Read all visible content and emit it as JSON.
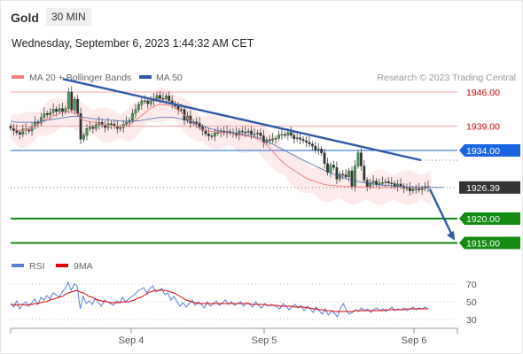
{
  "header": {
    "symbol": "Gold",
    "timeframe": "30 MIN"
  },
  "subtitle": "Wednesday, September 6, 2023 1:44:32 AM CET",
  "copyright": "Research © 2023 Trading Central",
  "colors": {
    "ma20": "#f08080",
    "ma50": "#2f5aa8",
    "support": "#138a13",
    "resist": "#f4a6a6",
    "current": "#333333",
    "pivot": "#1a66e0",
    "rsi": "#5b7fd8",
    "rsi_ma": "#e00000"
  },
  "chart_data": [
    {
      "type": "candlestick",
      "title": "Gold",
      "ylim": [
        1912,
        1952
      ],
      "legend": [
        {
          "name": "MA 20 + Bollinger Bands",
          "color": "#f08080"
        },
        {
          "name": "MA 50",
          "color": "#2f5aa8"
        }
      ],
      "levels": [
        {
          "label": "1946.00",
          "value": 1946.0,
          "kind": "resistance"
        },
        {
          "label": "1939.00",
          "value": 1939.0,
          "kind": "resistance"
        },
        {
          "label": "1934.00",
          "value": 1934.0,
          "kind": "pivot"
        },
        {
          "label": "1926.39",
          "value": 1926.39,
          "kind": "current"
        },
        {
          "label": "1920.00",
          "value": 1920.0,
          "kind": "support"
        },
        {
          "label": "1915.00",
          "value": 1915.0,
          "kind": "support"
        }
      ],
      "x_ticks": [
        "Sep 4",
        "Sep 5",
        "Sep 6"
      ],
      "close": [
        1938.6,
        1938.1,
        1937.7,
        1937.3,
        1938.4,
        1938.2,
        1938.0,
        1938.9,
        1939.8,
        1939.6,
        1940.8,
        1941.6,
        1941.3,
        1941.8,
        1942.5,
        1942.0,
        1942.6,
        1942.0,
        1942.6,
        1946.0,
        1942.3,
        1944.5,
        1941.6,
        1936.3,
        1937.1,
        1938.5,
        1938.8,
        1938.5,
        1939.3,
        1939.8,
        1939.2,
        1938.7,
        1939.5,
        1939.4,
        1939.0,
        1938.5,
        1938.7,
        1939.4,
        1939.8,
        1940.2,
        1941.6,
        1942.4,
        1943.4,
        1944.2,
        1944.2,
        1943.6,
        1944.2,
        1944.6,
        1945.3,
        1944.7,
        1944.6,
        1945.2,
        1944.2,
        1943.6,
        1943.1,
        1942.3,
        1942.4,
        1940.2,
        1941.1,
        1939.6,
        1939.9,
        1939.6,
        1938.8,
        1938.1,
        1937.4,
        1937.0,
        1936.9,
        1937.6,
        1937.7,
        1938.0,
        1937.6,
        1937.9,
        1937.7,
        1937.6,
        1937.1,
        1938.0,
        1937.8,
        1937.7,
        1938.0,
        1937.3,
        1937.4,
        1937.6,
        1937.0,
        1935.6,
        1936.2,
        1936.1,
        1936.4,
        1936.5,
        1937.2,
        1937.3,
        1937.1,
        1937.7,
        1937.1,
        1936.4,
        1936.6,
        1936.3,
        1936.0,
        1935.7,
        1935.3,
        1934.9,
        1934.1,
        1934.3,
        1933.5,
        1931.3,
        1929.5,
        1931.0,
        1930.5,
        1928.1,
        1929.1,
        1929.0,
        1928.6,
        1929.8,
        1926.6,
        1930.8,
        1933.5,
        1930.8,
        1927.9,
        1926.6,
        1927.3,
        1927.7,
        1927.0,
        1927.3,
        1927.4,
        1927.6,
        1927.3,
        1927.2,
        1926.6,
        1927.1,
        1926.7,
        1926.2,
        1926.3,
        1925.7,
        1926.1,
        1926.1,
        1925.9,
        1926.2,
        1926.6,
        1926.4
      ],
      "ma20": [
        1938.8,
        1938.6,
        1938.2,
        1938.0,
        1938.1,
        1938.3,
        1938.5,
        1938.8,
        1939.0,
        1939.4,
        1939.8,
        1940.2,
        1940.5,
        1940.8,
        1941.1,
        1941.3,
        1941.6,
        1941.8,
        1941.8,
        1942.1,
        1941.9,
        1941.8,
        1941.5,
        1940.6,
        1940.2,
        1940.0,
        1939.9,
        1939.8,
        1939.7,
        1939.5,
        1939.3,
        1939.2,
        1939.1,
        1939.0,
        1939.0,
        1938.9,
        1938.9,
        1939.0,
        1939.1,
        1939.3,
        1939.7,
        1940.2,
        1940.7,
        1941.2,
        1941.7,
        1942.2,
        1942.7,
        1943.0,
        1943.3,
        1943.4,
        1943.4,
        1943.4,
        1943.3,
        1943.1,
        1942.8,
        1942.3,
        1941.8,
        1941.2,
        1940.7,
        1940.2,
        1939.6,
        1939.0,
        1938.6,
        1938.3,
        1938.1,
        1938.0,
        1937.9,
        1937.9,
        1937.8,
        1937.8,
        1937.7,
        1937.7,
        1937.6,
        1937.5,
        1937.3,
        1937.2,
        1937.1,
        1937.0,
        1936.9,
        1936.8,
        1936.6,
        1936.3,
        1936.0,
        1935.6,
        1935.1,
        1934.5,
        1933.8,
        1933.1,
        1932.4,
        1931.8,
        1931.2,
        1930.7,
        1930.3,
        1929.9,
        1929.5,
        1929.1,
        1928.7,
        1928.3,
        1928.0,
        1927.8,
        1927.6,
        1927.4,
        1927.2,
        1927.0,
        1926.9,
        1926.8,
        1926.8,
        1926.7,
        1926.7,
        1926.6,
        1926.6,
        1926.6,
        1926.5,
        1926.5,
        1926.5,
        1926.5,
        1926.5,
        1926.4,
        1926.4,
        1926.4,
        1926.4,
        1926.4,
        1926.4,
        1926.4,
        1926.4,
        1926.4,
        1926.4,
        1926.4,
        1926.4,
        1926.4,
        1926.4,
        1926.4,
        1926.4,
        1926.4,
        1926.4,
        1926.4,
        1926.4,
        1926.4,
        1926.4
      ],
      "ma50": [
        1940.0,
        1939.9,
        1939.8,
        1939.8,
        1939.8,
        1939.8,
        1939.8,
        1939.8,
        1939.8,
        1939.9,
        1940.0,
        1940.1,
        1940.2,
        1940.3,
        1940.4,
        1940.5,
        1940.6,
        1940.7,
        1940.8,
        1940.9,
        1941.0,
        1941.0,
        1941.0,
        1940.9,
        1940.8,
        1940.7,
        1940.6,
        1940.5,
        1940.5,
        1940.4,
        1940.4,
        1940.3,
        1940.3,
        1940.2,
        1940.2,
        1940.1,
        1940.1,
        1940.0,
        1940.0,
        1940.0,
        1940.0,
        1940.1,
        1940.1,
        1940.2,
        1940.3,
        1940.4,
        1940.5,
        1940.6,
        1940.7,
        1940.8,
        1940.8,
        1940.8,
        1940.8,
        1940.8,
        1940.7,
        1940.6,
        1940.5,
        1940.3,
        1940.1,
        1939.9,
        1939.7,
        1939.4,
        1939.2,
        1939.0,
        1938.8,
        1938.6,
        1938.4,
        1938.2,
        1938.1,
        1938.0,
        1937.9,
        1937.8,
        1937.7,
        1937.6,
        1937.5,
        1937.4,
        1937.3,
        1937.2,
        1937.1,
        1937.0,
        1936.8,
        1936.6,
        1936.4,
        1936.2,
        1935.9,
        1935.6,
        1935.3,
        1935.0,
        1934.6,
        1934.3,
        1934.0,
        1933.6,
        1933.3,
        1933.0,
        1932.6,
        1932.3,
        1932.0,
        1931.7,
        1931.4,
        1931.1,
        1930.8,
        1930.5,
        1930.2,
        1929.9,
        1929.6,
        1929.4,
        1929.1,
        1928.9,
        1928.7,
        1928.5,
        1928.3,
        1928.1,
        1927.9,
        1927.8,
        1927.6,
        1927.5,
        1927.4,
        1927.3,
        1927.2,
        1927.1,
        1927.0,
        1926.9,
        1926.9,
        1926.8,
        1926.8,
        1926.7,
        1926.7,
        1926.6,
        1926.6,
        1926.6,
        1926.5,
        1926.5,
        1926.5,
        1926.5,
        1926.4,
        1926.4,
        1926.4,
        1926.4,
        1926.4,
        1926.4,
        1926.4,
        1926.4,
        1926.4
      ]
    },
    {
      "type": "line",
      "legend": [
        {
          "name": "RSI",
          "color": "#5b7fd8"
        },
        {
          "name": "9MA",
          "color": "#e00000"
        }
      ],
      "ylim": [
        20,
        80
      ],
      "y_ticks": [
        70,
        50,
        30
      ],
      "series": [
        {
          "name": "RSI",
          "values": [
            48,
            44,
            51,
            42,
            47,
            50,
            45,
            49,
            53,
            47,
            55,
            52,
            57,
            53,
            60,
            58,
            55,
            61,
            65,
            72,
            63,
            70,
            68,
            42,
            56,
            48,
            51,
            47,
            54,
            49,
            45,
            52,
            50,
            48,
            46,
            51,
            49,
            55,
            50,
            53,
            56,
            58,
            62,
            64,
            66,
            60,
            65,
            68,
            61,
            63,
            65,
            58,
            60,
            52,
            56,
            50,
            45,
            49,
            44,
            48,
            52,
            46,
            50,
            47,
            43,
            50,
            45,
            48,
            51,
            46,
            49,
            52,
            47,
            50,
            46,
            48,
            50,
            45,
            49,
            47,
            44,
            50,
            46,
            43,
            48,
            45,
            47,
            46,
            44,
            42,
            48,
            45,
            41,
            44,
            47,
            43,
            46,
            40,
            45,
            42,
            38,
            44,
            40,
            36,
            42,
            35,
            39,
            37,
            33,
            43,
            48,
            40,
            36,
            38,
            41,
            39,
            43,
            40,
            42,
            38,
            41,
            43,
            40,
            42,
            39,
            41,
            44,
            40,
            42,
            41,
            43,
            40,
            42,
            44,
            41,
            43,
            42,
            44,
            42
          ]
        },
        {
          "name": "9MA",
          "values": [
            47,
            47,
            46,
            47,
            47,
            46,
            47,
            47,
            48,
            48,
            49,
            50,
            50,
            52,
            53,
            54,
            55,
            56,
            58,
            60,
            61,
            62,
            63,
            61,
            60,
            58,
            56,
            55,
            53,
            52,
            51,
            50,
            50,
            49,
            49,
            49,
            49,
            50,
            50,
            50,
            51,
            52,
            54,
            55,
            57,
            59,
            61,
            62,
            63,
            63,
            63,
            63,
            62,
            61,
            60,
            58,
            56,
            54,
            52,
            51,
            50,
            49,
            48,
            48,
            48,
            48,
            48,
            48,
            48,
            48,
            48,
            48,
            48,
            48,
            48,
            48,
            48,
            48,
            48,
            48,
            47,
            47,
            47,
            47,
            47,
            46,
            46,
            46,
            46,
            45,
            45,
            45,
            45,
            45,
            44,
            44,
            44,
            44,
            43,
            43,
            42,
            42,
            41,
            41,
            40,
            40,
            40,
            39,
            39,
            39,
            39,
            39,
            39,
            39,
            40,
            40,
            40,
            40,
            40,
            40,
            40,
            40,
            40,
            40,
            41,
            41,
            41,
            41,
            41,
            41,
            41,
            42,
            42,
            42,
            42,
            42,
            42,
            42,
            42
          ]
        }
      ]
    }
  ]
}
